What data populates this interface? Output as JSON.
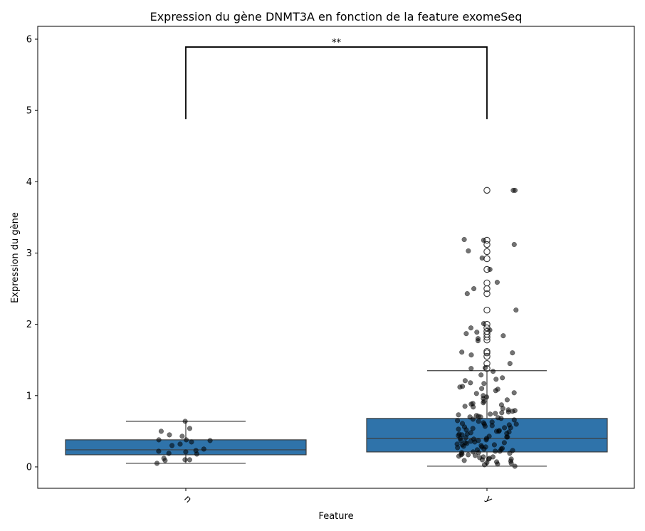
{
  "chart_data": {
    "type": "box",
    "title": "Expression du gène DNMT3A en fonction de la feature exomeSeq",
    "xlabel": "Feature",
    "ylabel": "Expression du gène",
    "categories": [
      "n",
      "y"
    ],
    "ylim": [
      -0.3,
      6.18
    ],
    "yticks": [
      0,
      1,
      2,
      3,
      4,
      5,
      6
    ],
    "box_color": "#2f73aa",
    "boxes": [
      {
        "category": "n",
        "q1": 0.17,
        "median": 0.24,
        "q3": 0.38,
        "whisker_low": 0.05,
        "whisker_high": 0.64,
        "outliers": []
      },
      {
        "category": "y",
        "q1": 0.21,
        "median": 0.4,
        "q3": 0.68,
        "whisker_low": 0.01,
        "whisker_high": 1.35,
        "outliers": [
          1.38,
          1.45,
          1.55,
          1.6,
          1.62,
          1.78,
          1.82,
          1.86,
          1.9,
          1.95,
          2.0,
          2.2,
          2.43,
          2.5,
          2.58,
          2.77,
          2.92,
          3.02,
          3.12,
          3.18,
          3.88
        ]
      }
    ],
    "strip_points": {
      "n": [
        0.64,
        0.54,
        0.5,
        0.45,
        0.43,
        0.38,
        0.38,
        0.37,
        0.35,
        0.32,
        0.3,
        0.25,
        0.23,
        0.22,
        0.21,
        0.19,
        0.18,
        0.12,
        0.1,
        0.1,
        0.09,
        0.05
      ],
      "y": [
        3.88,
        3.88,
        3.19,
        3.18,
        3.12,
        3.03,
        2.93,
        2.77,
        2.59,
        2.5,
        2.43,
        2.2,
        2.01,
        1.95,
        1.92,
        1.89,
        1.87,
        1.84,
        1.8,
        1.77,
        1.61,
        1.6,
        1.57,
        1.45,
        1.39,
        1.38,
        1.34,
        1.29,
        1.25,
        1.23,
        1.21,
        1.18,
        1.17,
        1.13,
        1.12,
        1.1,
        1.09,
        1.07,
        1.04,
        1.03,
        1.0,
        0.98,
        0.96,
        0.94,
        0.92,
        0.9,
        0.89,
        0.88,
        0.87,
        0.85,
        0.84,
        0.82,
        0.8,
        0.79,
        0.78,
        0.77,
        0.76,
        0.75,
        0.74,
        0.73,
        0.72,
        0.71,
        0.7,
        0.7,
        0.69,
        0.68,
        0.67,
        0.66,
        0.65,
        0.64,
        0.63,
        0.62,
        0.61,
        0.6,
        0.6,
        0.59,
        0.58,
        0.57,
        0.56,
        0.55,
        0.55,
        0.54,
        0.53,
        0.52,
        0.51,
        0.5,
        0.5,
        0.49,
        0.48,
        0.47,
        0.46,
        0.46,
        0.45,
        0.44,
        0.43,
        0.42,
        0.42,
        0.41,
        0.4,
        0.4,
        0.39,
        0.38,
        0.37,
        0.37,
        0.36,
        0.35,
        0.34,
        0.34,
        0.33,
        0.32,
        0.31,
        0.31,
        0.3,
        0.29,
        0.28,
        0.28,
        0.27,
        0.26,
        0.25,
        0.25,
        0.24,
        0.23,
        0.22,
        0.22,
        0.21,
        0.2,
        0.2,
        0.19,
        0.18,
        0.17,
        0.17,
        0.16,
        0.15,
        0.14,
        0.14,
        0.13,
        0.12,
        0.11,
        0.11,
        0.1,
        0.09,
        0.08,
        0.07,
        0.06,
        0.05,
        0.04,
        0.03,
        0.01
      ]
    },
    "annotation": {
      "text": "**",
      "between": [
        "n",
        "y"
      ],
      "bracket_top": 5.89,
      "bracket_bottom": 4.88
    }
  }
}
